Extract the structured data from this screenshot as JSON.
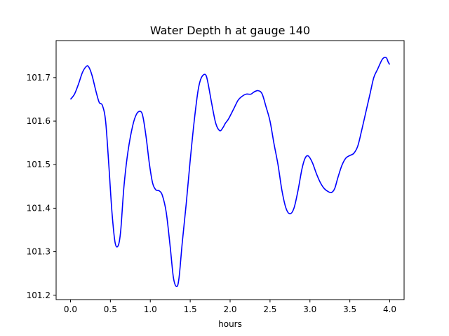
{
  "chart_data": {
    "type": "line",
    "title": "Water Depth h at gauge 140",
    "xlabel": "hours",
    "ylabel": "",
    "xlim": [
      -0.18,
      4.18
    ],
    "ylim": [
      101.19,
      101.785
    ],
    "xticks": [
      0.0,
      0.5,
      1.0,
      1.5,
      2.0,
      2.5,
      3.0,
      3.5,
      4.0
    ],
    "xtick_labels": [
      "0.0",
      "0.5",
      "1.0",
      "1.5",
      "2.0",
      "2.5",
      "3.0",
      "3.5",
      "4.0"
    ],
    "yticks": [
      101.2,
      101.3,
      101.4,
      101.5,
      101.6,
      101.7
    ],
    "ytick_labels": [
      "101.2",
      "101.3",
      "101.4",
      "101.5",
      "101.6",
      "101.7"
    ],
    "grid": false,
    "series": [
      {
        "color": "#0000ff",
        "x": [
          0.0,
          0.05,
          0.1,
          0.15,
          0.2,
          0.23,
          0.27,
          0.32,
          0.36,
          0.4,
          0.44,
          0.48,
          0.52,
          0.56,
          0.6,
          0.63,
          0.67,
          0.72,
          0.78,
          0.83,
          0.88,
          0.91,
          0.95,
          0.99,
          1.03,
          1.07,
          1.11,
          1.15,
          1.2,
          1.25,
          1.29,
          1.33,
          1.36,
          1.4,
          1.45,
          1.5,
          1.55,
          1.6,
          1.64,
          1.69,
          1.72,
          1.77,
          1.82,
          1.87,
          1.91,
          1.94,
          1.98,
          2.05,
          2.1,
          2.15,
          2.2,
          2.26,
          2.3,
          2.35,
          2.4,
          2.45,
          2.5,
          2.55,
          2.6,
          2.65,
          2.7,
          2.75,
          2.8,
          2.85,
          2.9,
          2.94,
          2.98,
          3.03,
          3.08,
          3.13,
          3.18,
          3.23,
          3.27,
          3.31,
          3.35,
          3.4,
          3.45,
          3.5,
          3.55,
          3.6,
          3.65,
          3.7,
          3.75,
          3.8,
          3.85,
          3.9,
          3.93,
          3.96,
          3.98,
          4.0
        ],
        "y": [
          101.65,
          101.662,
          101.685,
          101.712,
          101.726,
          101.724,
          101.705,
          101.668,
          101.643,
          101.636,
          101.6,
          101.5,
          101.39,
          101.32,
          101.315,
          101.35,
          101.45,
          101.53,
          101.59,
          101.617,
          101.622,
          101.608,
          101.56,
          101.5,
          101.457,
          101.442,
          101.44,
          101.43,
          101.39,
          101.31,
          101.24,
          101.22,
          101.24,
          101.32,
          101.41,
          101.51,
          101.6,
          101.672,
          101.7,
          101.707,
          101.69,
          101.64,
          101.595,
          101.578,
          101.585,
          101.595,
          101.605,
          101.63,
          101.648,
          101.657,
          101.662,
          101.662,
          101.667,
          101.67,
          101.663,
          101.633,
          101.6,
          101.548,
          101.5,
          101.44,
          101.4,
          101.387,
          101.4,
          101.44,
          101.49,
          101.515,
          101.52,
          101.505,
          101.48,
          101.459,
          101.445,
          101.438,
          101.436,
          101.445,
          101.47,
          101.498,
          101.515,
          101.521,
          101.526,
          101.543,
          101.58,
          101.62,
          101.66,
          101.7,
          101.72,
          101.74,
          101.746,
          101.745,
          101.736,
          101.73
        ]
      }
    ]
  }
}
